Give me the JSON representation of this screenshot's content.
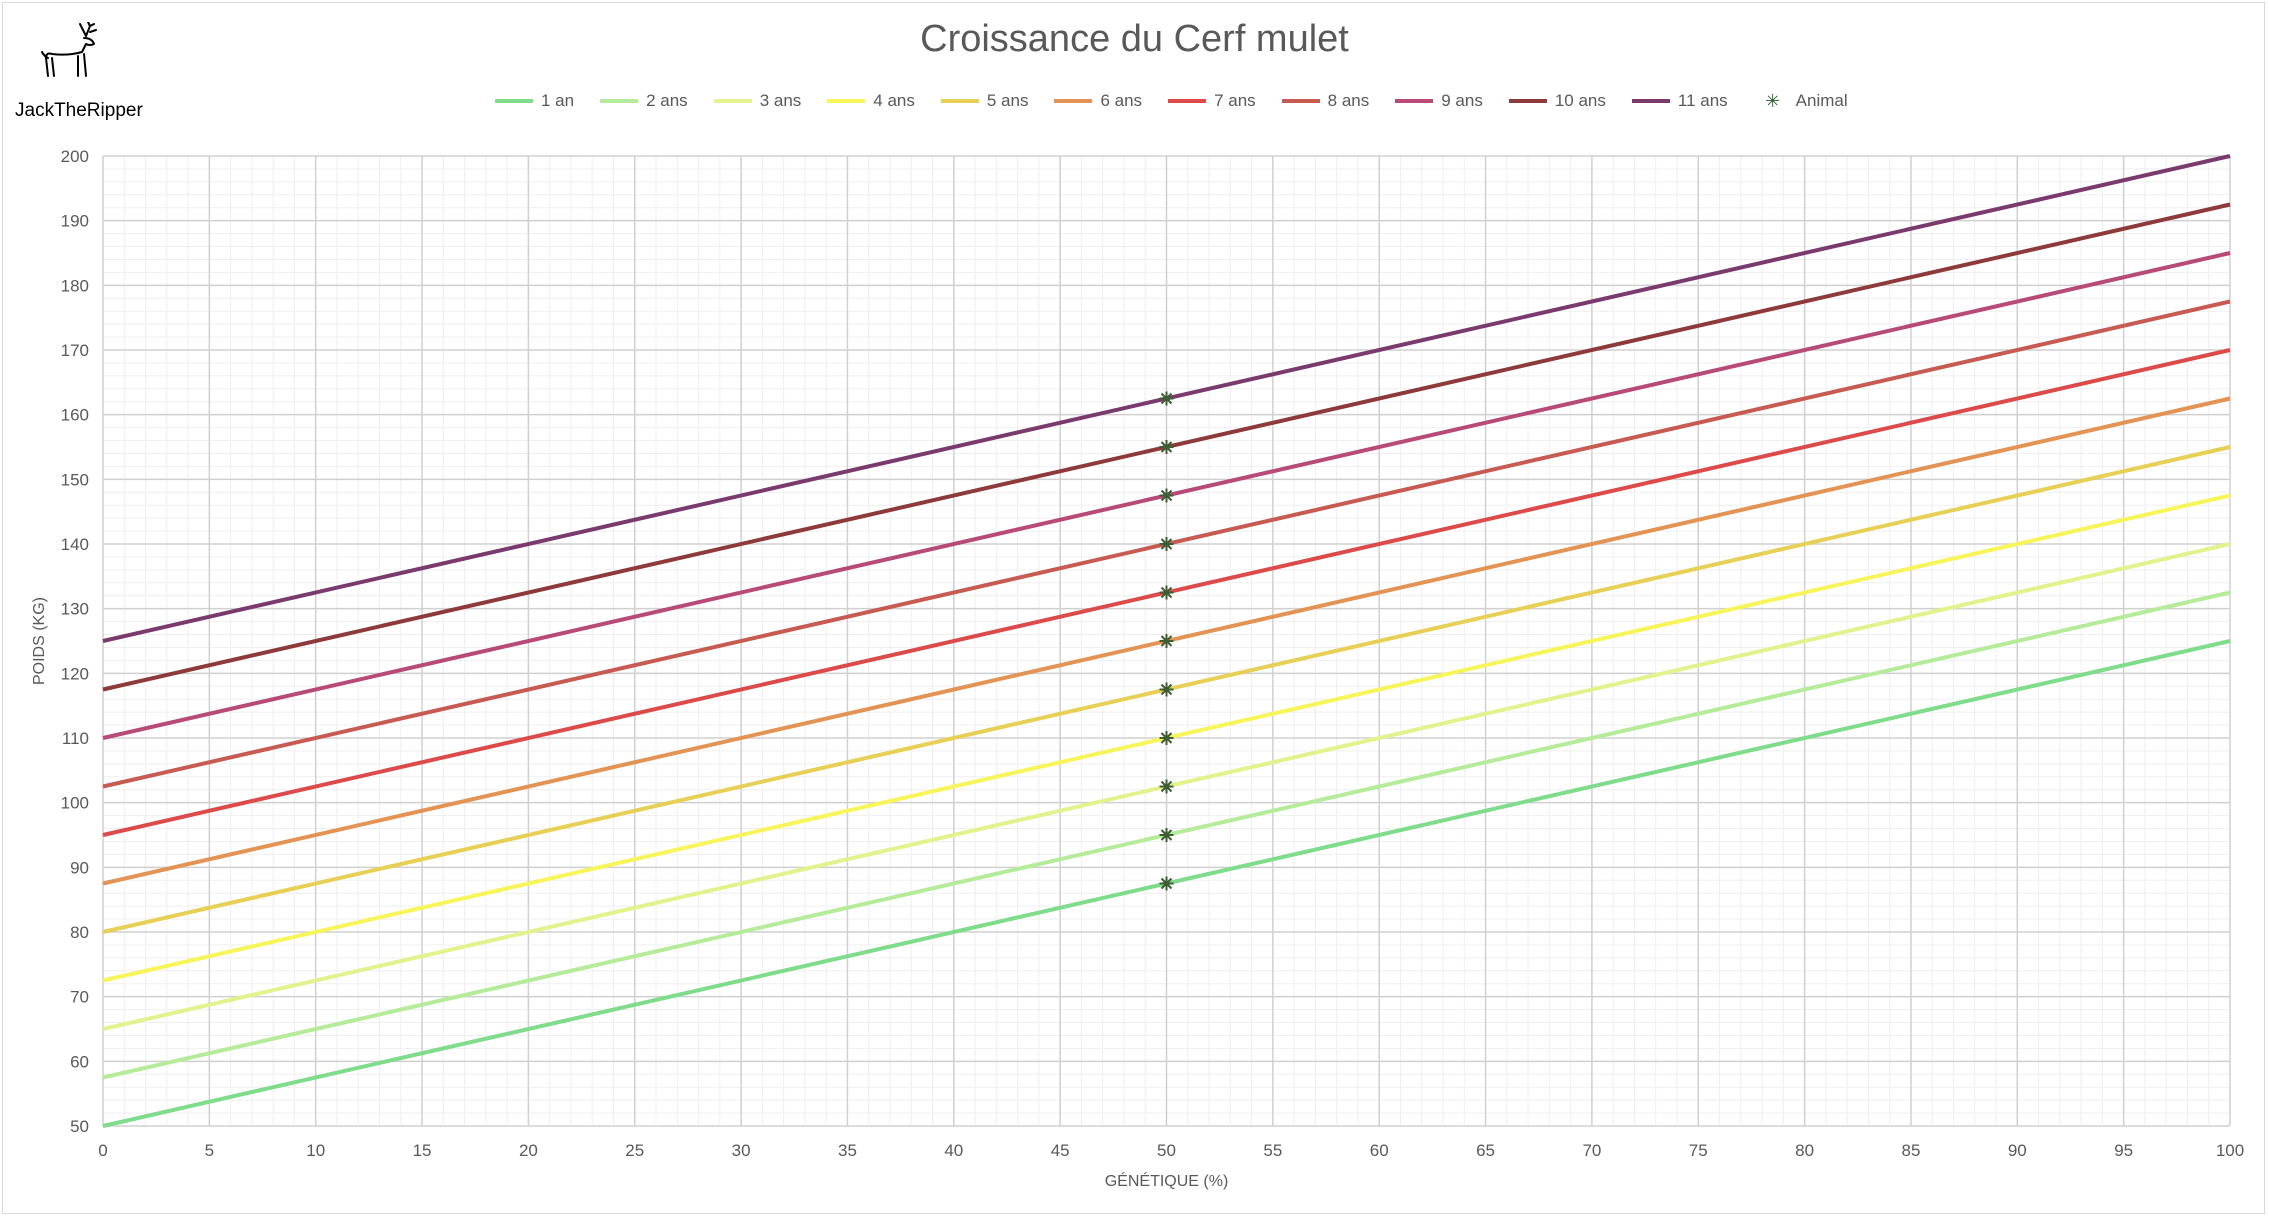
{
  "author": "JackTheRipper",
  "logo_icon": "deer-antlers-icon",
  "chart_data": {
    "type": "line",
    "title": "Croissance du Cerf mulet",
    "xlabel": "GÉNÉTIQUE (%)",
    "ylabel": "POIDS (KG)",
    "xlim": [
      0,
      100
    ],
    "ylim": [
      50,
      200
    ],
    "x_ticks": [
      0,
      5,
      10,
      15,
      20,
      25,
      30,
      35,
      40,
      45,
      50,
      55,
      60,
      65,
      70,
      75,
      80,
      85,
      90,
      95,
      100
    ],
    "y_ticks": [
      50,
      60,
      70,
      80,
      90,
      100,
      110,
      120,
      130,
      140,
      150,
      160,
      170,
      180,
      190,
      200
    ],
    "grid": true,
    "legend_position": "top",
    "x": [
      0,
      100
    ],
    "series": [
      {
        "name": "1 an",
        "values": [
          50,
          125
        ],
        "color": "#7fdc8a"
      },
      {
        "name": "2 ans",
        "values": [
          57.5,
          132.5
        ],
        "color": "#b5ec9a"
      },
      {
        "name": "3 ans",
        "values": [
          65,
          140
        ],
        "color": "#e3f28c"
      },
      {
        "name": "4 ans",
        "values": [
          72.5,
          147.5
        ],
        "color": "#f7f55a"
      },
      {
        "name": "5 ans",
        "values": [
          80,
          155
        ],
        "color": "#e8cf55"
      },
      {
        "name": "6 ans",
        "values": [
          87.5,
          162.5
        ],
        "color": "#e39454"
      },
      {
        "name": "7 ans",
        "values": [
          95,
          170
        ],
        "color": "#dc4a4a"
      },
      {
        "name": "8 ans",
        "values": [
          102.5,
          177.5
        ],
        "color": "#c75b52"
      },
      {
        "name": "9 ans",
        "values": [
          110,
          185
        ],
        "color": "#b84a78"
      },
      {
        "name": "10 ans",
        "values": [
          117.5,
          192.5
        ],
        "color": "#8e3a3a"
      },
      {
        "name": "11 ans",
        "values": [
          125,
          200
        ],
        "color": "#7a3a6e"
      }
    ],
    "animal": {
      "name": "Animal",
      "color": "#3d5e35",
      "points": [
        {
          "x": 50,
          "y": 87.5
        },
        {
          "x": 50,
          "y": 95
        },
        {
          "x": 50,
          "y": 102.5
        },
        {
          "x": 50,
          "y": 110
        },
        {
          "x": 50,
          "y": 117.5
        },
        {
          "x": 50,
          "y": 125
        },
        {
          "x": 50,
          "y": 132.5
        },
        {
          "x": 50,
          "y": 140
        },
        {
          "x": 50,
          "y": 147.5
        },
        {
          "x": 50,
          "y": 155
        },
        {
          "x": 50,
          "y": 162.5
        }
      ]
    }
  }
}
